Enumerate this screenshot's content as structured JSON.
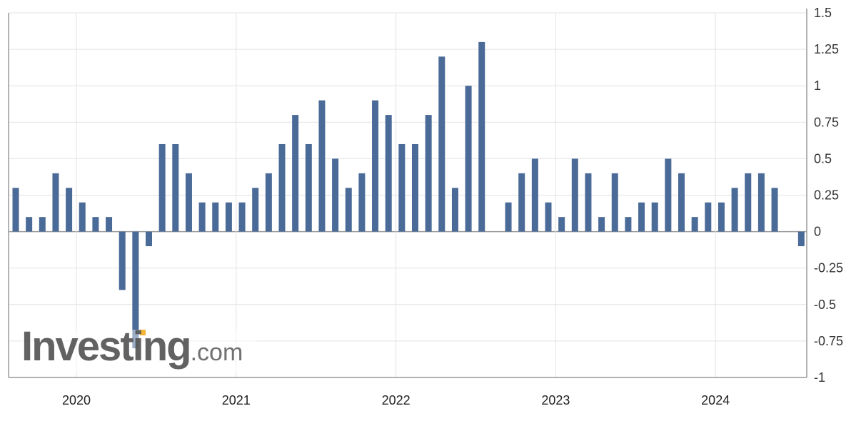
{
  "chart_data": {
    "type": "bar",
    "title": "",
    "xlabel": "",
    "ylabel": "",
    "ylim": [
      -1,
      1.5
    ],
    "y_ticks": [
      "1.5",
      "1.25",
      "1",
      "0.75",
      "0.5",
      "0.25",
      "0",
      "-0.25",
      "-0.5",
      "-0.75",
      "-1"
    ],
    "x_tick_labels": [
      "2020",
      "2021",
      "2022",
      "2023",
      "2024"
    ],
    "grid": true,
    "y_axis_position": "right",
    "bar_color": "#4a6a98",
    "series": [
      {
        "values": [
          0.3,
          0.1,
          0.1,
          0.4,
          0.3,
          0.2,
          0.1,
          0.1,
          -0.4,
          -0.8,
          -0.1,
          0.6,
          0.6,
          0.4,
          0.2,
          0.2,
          0.2,
          0.2,
          0.3,
          0.4,
          0.6,
          0.8,
          0.6,
          0.9,
          0.5,
          0.3,
          0.4,
          0.9,
          0.8,
          0.6,
          0.6,
          0.8,
          1.2,
          0.3,
          1.0,
          1.3,
          0.0,
          0.2,
          0.4,
          0.5,
          0.2,
          0.1,
          0.5,
          0.4,
          0.1,
          0.4,
          0.1,
          0.2,
          0.2,
          0.5,
          0.4,
          0.1,
          0.2,
          0.2,
          0.3,
          0.4,
          0.4,
          0.3,
          0.0,
          -0.1
        ]
      }
    ]
  },
  "watermark": {
    "brand": "Investing",
    "suffix": ".com",
    "accent": "#f5b335"
  }
}
